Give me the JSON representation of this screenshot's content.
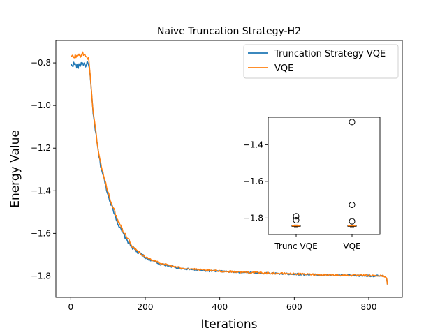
{
  "chart_data": [
    {
      "type": "line",
      "title": "Naive Truncation Strategy-H2",
      "xlabel": "Iterations",
      "ylabel": "Energy Value",
      "xlim": [
        -40,
        890
      ],
      "ylim": [
        -1.9,
        -0.695
      ],
      "xticks": [
        0,
        200,
        400,
        600,
        800
      ],
      "xtick_labels": [
        "0",
        "200",
        "400",
        "600",
        "800"
      ],
      "yticks": [
        -1.8,
        -1.6,
        -1.4,
        -1.2,
        -1.0,
        -0.8
      ],
      "ytick_labels": [
        "−1.8",
        "−1.6",
        "−1.4",
        "−1.2",
        "−1.0",
        "−0.8"
      ],
      "legend_position": "top-right",
      "series": [
        {
          "name": "Truncation Strategy VQE",
          "color": "#1f77b4",
          "x": [
            0,
            10,
            20,
            30,
            40,
            48,
            52,
            56,
            60,
            65,
            70,
            75,
            80,
            90,
            100,
            110,
            120,
            130,
            140,
            150,
            160,
            170,
            180,
            190,
            200,
            220,
            240,
            260,
            280,
            300,
            330,
            360,
            400,
            440,
            480,
            520,
            560,
            600,
            640,
            680,
            720,
            760,
            800,
            840,
            848,
            850
          ],
          "values": [
            -0.81,
            -0.805,
            -0.82,
            -0.8,
            -0.81,
            -0.8,
            -0.86,
            -0.95,
            -1.04,
            -1.1,
            -1.17,
            -1.23,
            -1.28,
            -1.35,
            -1.42,
            -1.47,
            -1.52,
            -1.57,
            -1.6,
            -1.63,
            -1.655,
            -1.675,
            -1.69,
            -1.7,
            -1.715,
            -1.73,
            -1.745,
            -1.75,
            -1.76,
            -1.765,
            -1.77,
            -1.775,
            -1.778,
            -1.781,
            -1.784,
            -1.787,
            -1.789,
            -1.791,
            -1.793,
            -1.795,
            -1.797,
            -1.798,
            -1.799,
            -1.8,
            -1.81,
            -1.84
          ]
        },
        {
          "name": "VQE",
          "color": "#ff7f0e",
          "x": [
            0,
            10,
            20,
            30,
            40,
            48,
            52,
            56,
            60,
            65,
            70,
            75,
            80,
            90,
            100,
            110,
            120,
            130,
            140,
            150,
            160,
            170,
            180,
            190,
            200,
            220,
            240,
            260,
            280,
            300,
            330,
            360,
            400,
            440,
            480,
            520,
            560,
            600,
            640,
            680,
            720,
            760,
            800,
            840,
            848,
            850
          ],
          "values": [
            -0.775,
            -0.77,
            -0.765,
            -0.76,
            -0.765,
            -0.78,
            -0.86,
            -0.94,
            -1.03,
            -1.09,
            -1.16,
            -1.22,
            -1.27,
            -1.34,
            -1.41,
            -1.46,
            -1.51,
            -1.55,
            -1.585,
            -1.615,
            -1.645,
            -1.67,
            -1.685,
            -1.695,
            -1.71,
            -1.725,
            -1.74,
            -1.748,
            -1.757,
            -1.763,
            -1.768,
            -1.773,
            -1.777,
            -1.78,
            -1.783,
            -1.786,
            -1.788,
            -1.79,
            -1.792,
            -1.794,
            -1.796,
            -1.797,
            -1.798,
            -1.799,
            -1.81,
            -1.84
          ]
        }
      ]
    },
    {
      "type": "box",
      "position": "inset",
      "categories": [
        "Trunc VQE",
        "VQE"
      ],
      "ylim": [
        -1.89,
        -1.25
      ],
      "yticks": [
        -1.8,
        -1.6,
        -1.4
      ],
      "ytick_labels": [
        "−1.8",
        "−1.6",
        "−1.4"
      ],
      "median_color": "#ff7f0e",
      "boxes": [
        {
          "name": "Trunc VQE",
          "q1": -1.846,
          "median": -1.843,
          "q3": -1.84,
          "whisker_low": -1.848,
          "whisker_high": -1.838,
          "outliers": [
            -1.79,
            -1.812
          ]
        },
        {
          "name": "VQE",
          "q1": -1.846,
          "median": -1.843,
          "q3": -1.84,
          "whisker_low": -1.848,
          "whisker_high": -1.838,
          "outliers": [
            -1.276,
            -1.728,
            -1.818
          ]
        }
      ]
    }
  ]
}
